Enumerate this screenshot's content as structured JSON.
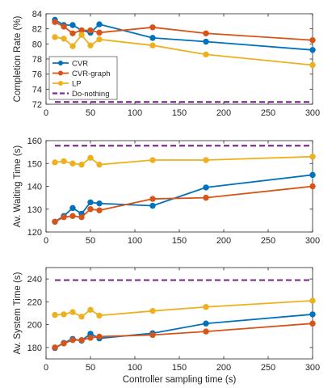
{
  "colors": {
    "cvr": "#0072BD",
    "cvr_graph": "#D95319",
    "lp": "#EDB120",
    "do_nothing": "#7E2F8E",
    "axis": "#262626"
  },
  "chart_data": [
    {
      "type": "line",
      "ylabel": "Completion Rate (%)",
      "xlabel": "",
      "xlim": [
        0,
        300
      ],
      "ylim": [
        72,
        84
      ],
      "xticks": [
        0,
        50,
        100,
        150,
        200,
        250,
        300
      ],
      "yticks": [
        72,
        74,
        76,
        78,
        80,
        82,
        84
      ],
      "legend_position": "middle-left",
      "x": [
        10,
        20,
        30,
        40,
        50,
        60,
        120,
        180,
        300
      ],
      "series": [
        {
          "name": "CVR",
          "color": "cvr",
          "marker": "circle",
          "values": [
            83.2,
            82.5,
            82.5,
            81.8,
            81.5,
            82.6,
            80.8,
            80.3,
            79.2
          ]
        },
        {
          "name": "CVR-graph",
          "color": "cvr_graph",
          "marker": "circle",
          "values": [
            82.9,
            82.3,
            81.4,
            81.8,
            81.8,
            81.5,
            82.2,
            81.4,
            80.5
          ]
        },
        {
          "name": "LP",
          "color": "lp",
          "marker": "circle",
          "values": [
            80.9,
            80.7,
            79.7,
            81.2,
            79.8,
            80.6,
            79.8,
            78.6,
            77.2
          ]
        },
        {
          "name": "Do-nothing",
          "color": "do_nothing",
          "dashed": true,
          "values": [
            72.3,
            72.3,
            72.3,
            72.3,
            72.3,
            72.3,
            72.3,
            72.3,
            72.3
          ]
        }
      ]
    },
    {
      "type": "line",
      "ylabel": "Av. Waiting Time (s)",
      "xlabel": "",
      "xlim": [
        0,
        300
      ],
      "ylim": [
        120,
        160
      ],
      "xticks": [
        0,
        50,
        100,
        150,
        200,
        250,
        300
      ],
      "yticks": [
        120,
        130,
        140,
        150,
        160
      ],
      "x": [
        10,
        20,
        30,
        40,
        50,
        60,
        120,
        180,
        300
      ],
      "series": [
        {
          "color": "cvr",
          "marker": "circle",
          "values": [
            124.5,
            127,
            130.5,
            128,
            133,
            132.5,
            131.5,
            139.5,
            145
          ]
        },
        {
          "color": "cvr_graph",
          "marker": "circle",
          "values": [
            124.5,
            126.5,
            127,
            126.5,
            130,
            129.5,
            134.5,
            135,
            140
          ]
        },
        {
          "color": "lp",
          "marker": "circle",
          "values": [
            150.5,
            151,
            150,
            149.5,
            152.5,
            149.5,
            151.5,
            151.5,
            153
          ]
        },
        {
          "color": "do_nothing",
          "dashed": true,
          "values": [
            157.8,
            157.8,
            157.8,
            157.8,
            157.8,
            157.8,
            157.8,
            157.8,
            157.8
          ]
        }
      ]
    },
    {
      "type": "line",
      "ylabel": "Av. System Time (s)",
      "xlabel": "Controller sampling time (s)",
      "xlim": [
        0,
        300
      ],
      "ylim": [
        170,
        250
      ],
      "xticks": [
        0,
        50,
        100,
        150,
        200,
        250,
        300
      ],
      "yticks": [
        180,
        200,
        220,
        240
      ],
      "x": [
        10,
        20,
        30,
        40,
        50,
        60,
        120,
        180,
        300
      ],
      "series": [
        {
          "color": "cvr",
          "marker": "circle",
          "values": [
            179.5,
            184,
            187.5,
            186,
            192,
            188,
            192.5,
            201,
            209
          ]
        },
        {
          "color": "cvr_graph",
          "marker": "circle",
          "values": [
            180,
            183.5,
            186.5,
            186.5,
            188.5,
            189.5,
            191,
            194,
            201
          ]
        },
        {
          "color": "lp",
          "marker": "circle",
          "values": [
            208.5,
            209,
            211,
            207,
            213,
            208,
            212,
            215.5,
            221
          ]
        },
        {
          "color": "do_nothing",
          "dashed": true,
          "values": [
            239,
            239,
            239,
            239,
            239,
            239,
            239,
            239,
            239
          ]
        }
      ]
    }
  ]
}
